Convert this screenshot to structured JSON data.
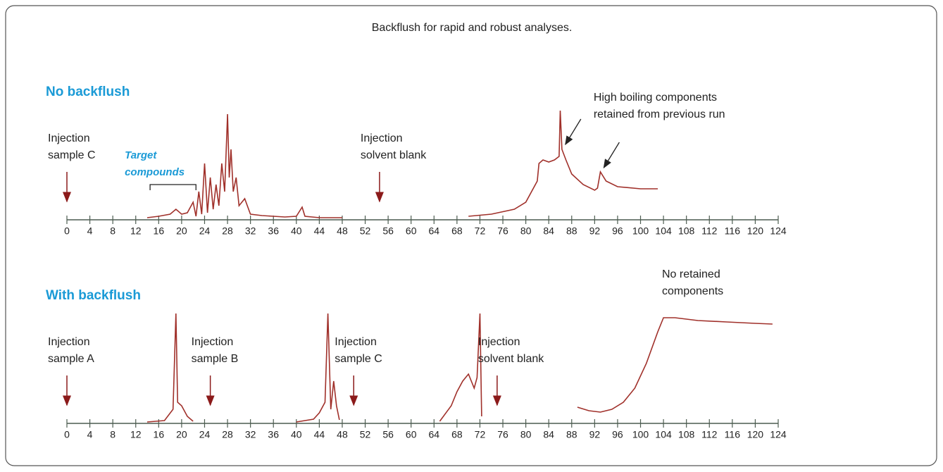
{
  "title": "Backflush for rapid and robust analyses.",
  "chart_data": [
    {
      "type": "line",
      "label": "No backflush",
      "x": [
        14,
        16,
        18,
        19,
        20,
        21,
        22,
        22.5,
        23,
        23.5,
        24,
        24.5,
        25,
        25.5,
        26,
        26.5,
        27,
        27.5,
        28,
        28.3,
        28.6,
        29,
        29.5,
        30,
        31,
        32,
        34,
        36,
        38,
        40,
        41,
        41.5,
        44,
        48,
        59,
        70,
        74,
        78,
        80,
        82,
        82.3,
        83,
        84,
        85,
        85.8,
        86,
        86.3,
        87,
        88,
        90,
        92,
        92.5,
        93,
        94,
        96,
        100,
        103
      ],
      "series": [
        {
          "color": "#a0302a",
          "values": [
            3,
            5,
            8,
            15,
            8,
            10,
            25,
            5,
            40,
            8,
            80,
            10,
            60,
            15,
            50,
            20,
            80,
            40,
            150,
            60,
            100,
            40,
            60,
            20,
            30,
            8,
            6,
            5,
            4,
            5,
            18,
            5,
            3,
            3,
            null,
            5,
            8,
            15,
            25,
            55,
            80,
            85,
            82,
            85,
            90,
            155,
            100,
            85,
            65,
            50,
            42,
            45,
            68,
            55,
            47,
            44,
            44
          ]
        }
      ],
      "xlim": [
        0,
        124
      ],
      "xticks": [
        0,
        4,
        8,
        12,
        16,
        20,
        24,
        28,
        32,
        36,
        40,
        44,
        48,
        52,
        56,
        60,
        64,
        68,
        72,
        76,
        80,
        84,
        88,
        92,
        96,
        100,
        104,
        108,
        112,
        116,
        120,
        124
      ],
      "ylim": [
        0,
        160
      ],
      "annotations": [
        {
          "kind": "injection",
          "x": 0,
          "text": [
            "Injection",
            "sample C"
          ]
        },
        {
          "kind": "injection",
          "x": 54.5,
          "text": [
            "Injection",
            "solvent blank"
          ]
        },
        {
          "kind": "bracket",
          "range": [
            14.5,
            22.5
          ],
          "text": [
            "Target",
            "compounds"
          ]
        },
        {
          "kind": "callout",
          "arrows_x": [
            86.9,
            93.6
          ],
          "text": [
            "High boiling components",
            "retained from previous run"
          ]
        }
      ]
    },
    {
      "type": "line",
      "label": "With backflush",
      "x": [
        14,
        17,
        18.5,
        19,
        19.3,
        20,
        21,
        22,
        30,
        40,
        43,
        44,
        45,
        45.5,
        46,
        46.5,
        47,
        47.5,
        56,
        65,
        67,
        68,
        69,
        70,
        71,
        71.5,
        72,
        72.3,
        80,
        89,
        91,
        93,
        95,
        97,
        99,
        101,
        103,
        104,
        106,
        110,
        115,
        120,
        123
      ],
      "series": [
        {
          "color": "#a0302a",
          "values": [
            2,
            4,
            20,
            156,
            30,
            25,
            10,
            3,
            null,
            2,
            6,
            15,
            30,
            156,
            20,
            60,
            25,
            5,
            null,
            3,
            25,
            45,
            60,
            70,
            50,
            65,
            156,
            10,
            null,
            23,
            18,
            16,
            20,
            30,
            50,
            85,
            130,
            150,
            150,
            146,
            144,
            142,
            141
          ]
        }
      ],
      "xlim": [
        0,
        124
      ],
      "xticks": [
        0,
        4,
        8,
        12,
        16,
        20,
        24,
        28,
        32,
        36,
        40,
        44,
        48,
        52,
        56,
        60,
        64,
        68,
        72,
        76,
        80,
        84,
        88,
        92,
        96,
        100,
        104,
        108,
        112,
        116,
        120,
        124
      ],
      "ylim": [
        0,
        160
      ],
      "annotations": [
        {
          "kind": "injection",
          "x": 0,
          "text": [
            "Injection",
            "sample A"
          ]
        },
        {
          "kind": "injection",
          "x": 25,
          "text": [
            "Injection",
            "sample B"
          ]
        },
        {
          "kind": "injection",
          "x": 50,
          "text": [
            "Injection",
            "sample C"
          ]
        },
        {
          "kind": "injection",
          "x": 75,
          "text": [
            "Injection",
            "solvent blank"
          ]
        },
        {
          "kind": "note",
          "text": [
            "No retained",
            "components"
          ]
        }
      ]
    }
  ]
}
